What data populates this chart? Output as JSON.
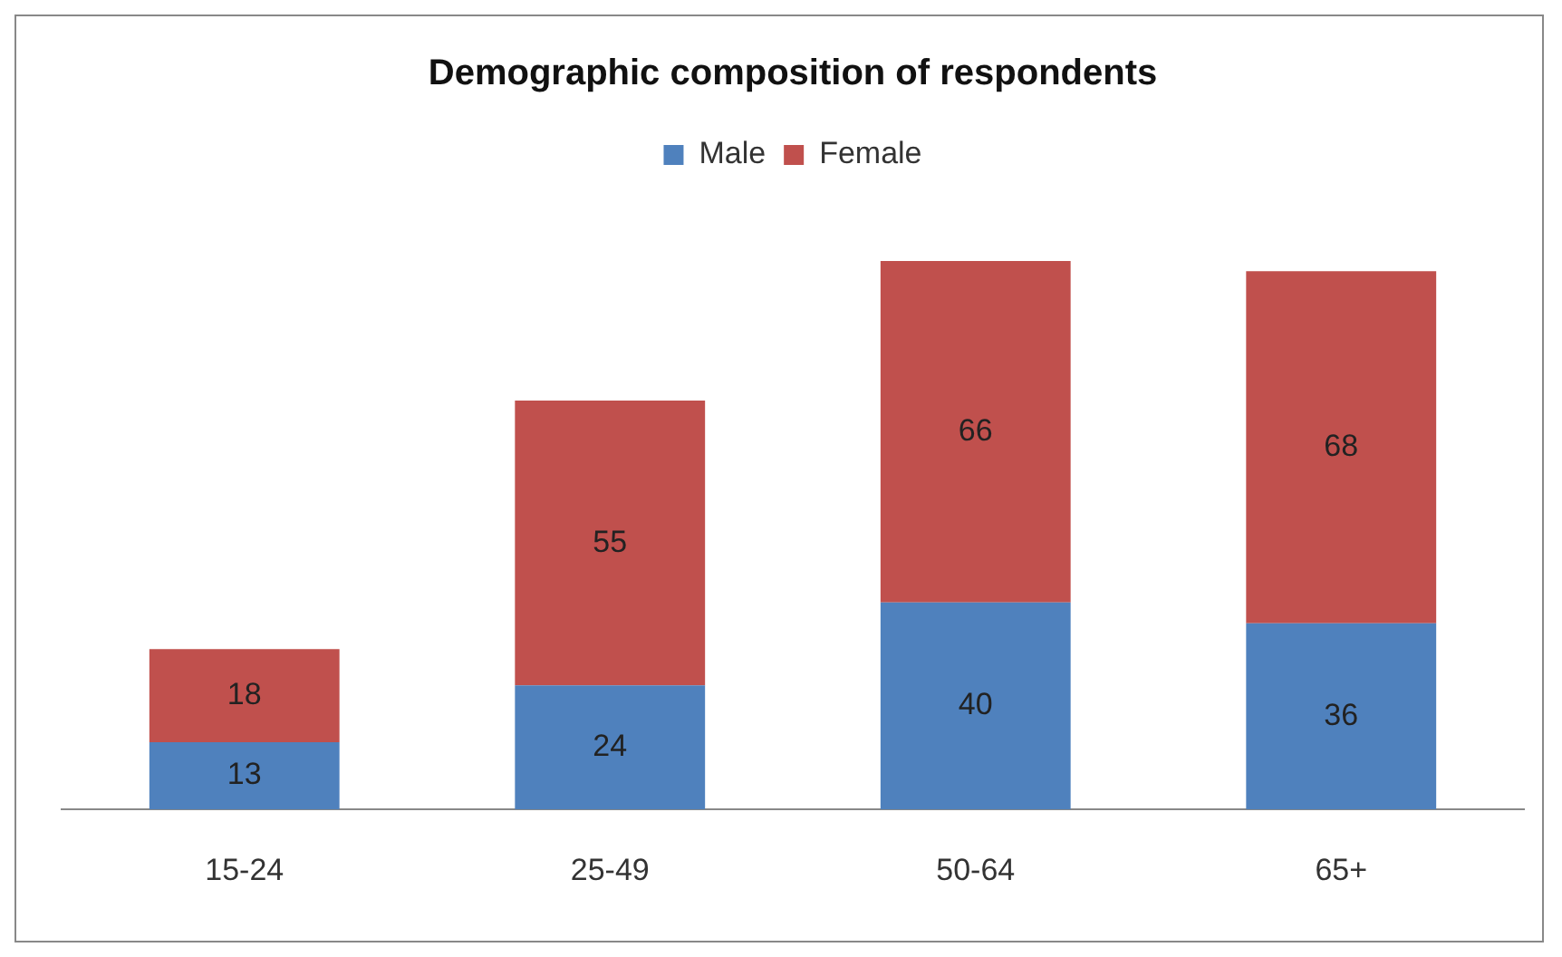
{
  "chart_data": {
    "type": "bar",
    "title": "Demographic composition of respondents",
    "categories": [
      "15-24",
      "25-49",
      "50-64",
      "65+"
    ],
    "stacked": true,
    "data_labels": true,
    "legend": "top",
    "grid": false,
    "tick_labels": "x",
    "series": [
      {
        "name": "Male",
        "color": "#4f81bd",
        "values": [
          13,
          24,
          40,
          36
        ]
      },
      {
        "name": "Female",
        "color": "#c0504d",
        "values": [
          18,
          55,
          66,
          68
        ]
      }
    ]
  }
}
